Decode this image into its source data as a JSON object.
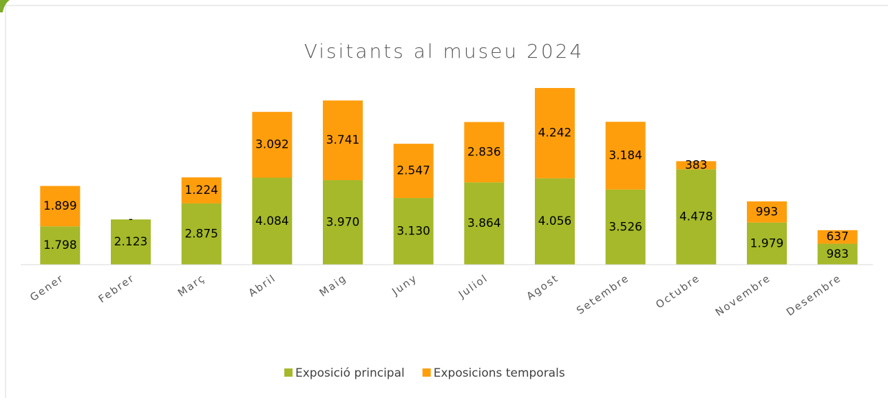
{
  "chart_data": {
    "type": "stacked_bar",
    "title": "Visitants al museu 2024",
    "categories": [
      "Gener",
      "Febrer",
      "Març",
      "Abril",
      "Maig",
      "Juny",
      "Juliol",
      "Agost",
      "Setembre",
      "Octubre",
      "Novembre",
      "Desembre"
    ],
    "series": [
      {
        "name": "Exposició principal",
        "color": "#a5b92a",
        "values": [
          1798,
          2123,
          2875,
          4084,
          3970,
          3130,
          3864,
          4056,
          3526,
          4478,
          1979,
          983
        ],
        "value_labels": [
          "1.798",
          "2.123",
          "2.875",
          "4.084",
          "3.970",
          "3.130",
          "3.864",
          "4.056",
          "3.526",
          "4.478",
          "1.979",
          "983"
        ]
      },
      {
        "name": "Exposicions temporals",
        "color": "#ff9e0d",
        "values": [
          1899,
          0,
          1224,
          3092,
          3741,
          2547,
          2836,
          4242,
          3184,
          383,
          993,
          637
        ],
        "value_labels": [
          "1.899",
          "-",
          "1.224",
          "3.092",
          "3.741",
          "2.547",
          "2.836",
          "4.242",
          "3.184",
          "383",
          "993",
          "637"
        ]
      }
    ],
    "legend": "bottom"
  }
}
